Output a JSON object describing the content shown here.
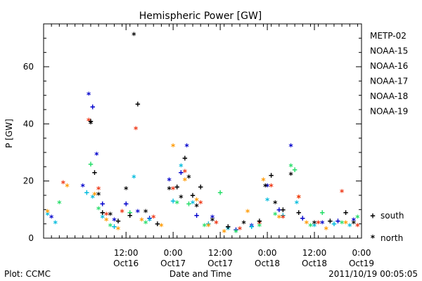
{
  "chart_data": {
    "type": "scatter",
    "title": "Hemispheric Power [GW]",
    "ylabel": "P [GW]",
    "xlabel": "Date and Time",
    "ylim": [
      0,
      75
    ],
    "xlim": [
      "2011-10-15T15:00",
      "2011-10-19T00:00"
    ],
    "yticks": [
      0,
      20,
      40,
      60
    ],
    "xticks": [
      {
        "time": "12:00",
        "date": "Oct16",
        "at": "2011-10-16T12:00"
      },
      {
        "time": "0:00",
        "date": "Oct17",
        "at": "2011-10-17T00:00"
      },
      {
        "time": "12:00",
        "date": "Oct17",
        "at": "2011-10-17T12:00"
      },
      {
        "time": "0:00",
        "date": "Oct18",
        "at": "2011-10-18T00:00"
      },
      {
        "time": "12:00",
        "date": "Oct18",
        "at": "2011-10-18T12:00"
      },
      {
        "time": "0:00",
        "date": "Oct19",
        "at": "2011-10-19T00:00"
      }
    ],
    "marker_legend": [
      {
        "symbol": "+",
        "label": "south"
      },
      {
        "symbol": "*",
        "label": "north"
      }
    ],
    "series": [
      {
        "name": "METP-02",
        "color": "#000000",
        "points": [
          [
            "2011-10-16T03:00",
            41,
            "+"
          ],
          [
            "2011-10-16T03:00",
            40,
            "*"
          ],
          [
            "2011-10-16T04:00",
            23,
            "+"
          ],
          [
            "2011-10-16T05:00",
            15,
            "*"
          ],
          [
            "2011-10-16T06:00",
            9,
            "+"
          ],
          [
            "2011-10-16T08:00",
            8,
            "*"
          ],
          [
            "2011-10-16T10:00",
            6,
            "+"
          ],
          [
            "2011-10-16T12:00",
            17,
            "*"
          ],
          [
            "2011-10-16T13:00",
            8,
            "+"
          ],
          [
            "2011-10-16T14:00",
            71,
            "*"
          ],
          [
            "2011-10-16T15:00",
            47,
            "+"
          ],
          [
            "2011-10-16T17:00",
            9,
            "*"
          ],
          [
            "2011-10-16T20:00",
            5,
            "+"
          ],
          [
            "2011-10-16T23:00",
            17,
            "*"
          ],
          [
            "2011-10-17T01:00",
            18,
            "+"
          ],
          [
            "2011-10-17T02:00",
            14,
            "*"
          ],
          [
            "2011-10-17T03:00",
            28,
            "+"
          ],
          [
            "2011-10-17T04:00",
            21,
            "*"
          ],
          [
            "2011-10-17T05:00",
            15,
            "+"
          ],
          [
            "2011-10-17T06:00",
            11,
            "*"
          ],
          [
            "2011-10-17T07:00",
            18,
            "+"
          ],
          [
            "2011-10-17T10:00",
            6,
            "*"
          ],
          [
            "2011-10-17T14:00",
            4,
            "+"
          ],
          [
            "2011-10-17T18:00",
            5,
            "*"
          ],
          [
            "2011-10-17T22:00",
            6,
            "+"
          ],
          [
            "2011-10-17T23:30",
            18,
            "*"
          ],
          [
            "2011-10-18T01:00",
            22,
            "+"
          ],
          [
            "2011-10-18T02:00",
            12,
            "*"
          ],
          [
            "2011-10-18T04:00",
            10,
            "+"
          ],
          [
            "2011-10-18T06:00",
            22,
            "*"
          ],
          [
            "2011-10-18T08:00",
            9,
            "+"
          ],
          [
            "2011-10-18T12:00",
            5,
            "*"
          ],
          [
            "2011-10-18T16:00",
            6,
            "+"
          ],
          [
            "2011-10-18T20:00",
            9,
            "+"
          ],
          [
            "2011-10-18T22:00",
            5,
            "*"
          ]
        ]
      },
      {
        "name": "NOAA-15",
        "color": "#0000cc",
        "points": [
          [
            "2011-10-15T17:00",
            7,
            "*"
          ],
          [
            "2011-10-16T01:00",
            18,
            "*"
          ],
          [
            "2011-10-16T02:30",
            50,
            "*"
          ],
          [
            "2011-10-16T03:30",
            46,
            "+"
          ],
          [
            "2011-10-16T04:30",
            29,
            "*"
          ],
          [
            "2011-10-16T06:00",
            12,
            "+"
          ],
          [
            "2011-10-16T09:00",
            6,
            "*"
          ],
          [
            "2011-10-16T12:00",
            12,
            "+"
          ],
          [
            "2011-10-16T15:00",
            9,
            "*"
          ],
          [
            "2011-10-16T18:00",
            7,
            "+"
          ],
          [
            "2011-10-16T23:00",
            20,
            "*"
          ],
          [
            "2011-10-17T02:00",
            23,
            "+"
          ],
          [
            "2011-10-17T03:30",
            32,
            "*"
          ],
          [
            "2011-10-17T06:00",
            8,
            "+"
          ],
          [
            "2011-10-17T10:00",
            7,
            "*"
          ],
          [
            "2011-10-17T16:00",
            3,
            "+"
          ],
          [
            "2011-10-17T20:00",
            4,
            "*"
          ],
          [
            "2011-10-18T00:00",
            18,
            "*"
          ],
          [
            "2011-10-18T03:00",
            10,
            "+"
          ],
          [
            "2011-10-18T06:00",
            32,
            "*"
          ],
          [
            "2011-10-18T09:00",
            7,
            "+"
          ],
          [
            "2011-10-18T14:00",
            5,
            "*"
          ],
          [
            "2011-10-18T18:00",
            6,
            "+"
          ],
          [
            "2011-10-18T22:00",
            6,
            "*"
          ]
        ]
      },
      {
        "name": "NOAA-16",
        "color": "#00bbdd",
        "points": [
          [
            "2011-10-15T16:00",
            8,
            "*"
          ],
          [
            "2011-10-15T18:00",
            5,
            "*"
          ],
          [
            "2011-10-16T02:00",
            16,
            "+"
          ],
          [
            "2011-10-16T03:30",
            14,
            "*"
          ],
          [
            "2011-10-16T06:00",
            7,
            "*"
          ],
          [
            "2011-10-16T09:00",
            4,
            "+"
          ],
          [
            "2011-10-16T14:00",
            21,
            "*"
          ],
          [
            "2011-10-16T18:00",
            6,
            "*"
          ],
          [
            "2011-10-17T00:00",
            13,
            "+"
          ],
          [
            "2011-10-17T02:00",
            25,
            "*"
          ],
          [
            "2011-10-17T05:00",
            12,
            "*"
          ],
          [
            "2011-10-17T09:00",
            5,
            "+"
          ],
          [
            "2011-10-17T14:00",
            3,
            "*"
          ],
          [
            "2011-10-17T20:00",
            4,
            "+"
          ],
          [
            "2011-10-18T00:00",
            13,
            "*"
          ],
          [
            "2011-10-18T04:00",
            8,
            "+"
          ],
          [
            "2011-10-18T07:30",
            12,
            "*"
          ],
          [
            "2011-10-18T12:00",
            4,
            "*"
          ],
          [
            "2011-10-18T17:00",
            5,
            "+"
          ],
          [
            "2011-10-18T21:00",
            4,
            "*"
          ]
        ]
      },
      {
        "name": "NOAA-17",
        "color": "#22dd66",
        "points": [
          [
            "2011-10-15T19:00",
            12,
            "*"
          ],
          [
            "2011-10-16T03:00",
            26,
            "+"
          ],
          [
            "2011-10-16T05:00",
            10,
            "*"
          ],
          [
            "2011-10-16T08:00",
            4,
            "*"
          ],
          [
            "2011-10-16T13:00",
            9,
            "+"
          ],
          [
            "2011-10-16T17:00",
            5,
            "*"
          ],
          [
            "2011-10-17T01:00",
            12,
            "*"
          ],
          [
            "2011-10-17T04:00",
            12,
            "+"
          ],
          [
            "2011-10-17T08:00",
            4,
            "*"
          ],
          [
            "2011-10-17T12:00",
            16,
            "+"
          ],
          [
            "2011-10-17T16:00",
            2,
            "*"
          ],
          [
            "2011-10-17T22:00",
            4,
            "*"
          ],
          [
            "2011-10-18T02:00",
            8,
            "*"
          ],
          [
            "2011-10-18T06:00",
            25,
            "*"
          ],
          [
            "2011-10-18T07:00",
            24,
            "+"
          ],
          [
            "2011-10-18T11:00",
            4,
            "*"
          ],
          [
            "2011-10-18T14:00",
            9,
            "+"
          ],
          [
            "2011-10-18T19:00",
            5,
            "*"
          ],
          [
            "2011-10-18T23:00",
            7,
            "*"
          ]
        ]
      },
      {
        "name": "NOAA-18",
        "color": "#ff9900",
        "points": [
          [
            "2011-10-15T16:00",
            9,
            "*"
          ],
          [
            "2011-10-15T21:00",
            18,
            "*"
          ],
          [
            "2011-10-16T04:00",
            15,
            "*"
          ],
          [
            "2011-10-16T07:00",
            6,
            "*"
          ],
          [
            "2011-10-16T10:00",
            3,
            "*"
          ],
          [
            "2011-10-16T16:00",
            6,
            "*"
          ],
          [
            "2011-10-16T21:00",
            4,
            "*"
          ],
          [
            "2011-10-17T00:00",
            32,
            "*"
          ],
          [
            "2011-10-17T03:00",
            20,
            "*"
          ],
          [
            "2011-10-17T06:00",
            13,
            "*"
          ],
          [
            "2011-10-17T09:00",
            4,
            "*"
          ],
          [
            "2011-10-17T13:00",
            2,
            "*"
          ],
          [
            "2011-10-17T19:00",
            9,
            "*"
          ],
          [
            "2011-10-17T23:00",
            20,
            "*"
          ],
          [
            "2011-10-18T03:00",
            7,
            "*"
          ],
          [
            "2011-10-18T08:00",
            14,
            "*"
          ],
          [
            "2011-10-18T10:00",
            5,
            "*"
          ],
          [
            "2011-10-18T15:00",
            3,
            "*"
          ],
          [
            "2011-10-18T20:00",
            5,
            "*"
          ]
        ]
      },
      {
        "name": "NOAA-19",
        "color": "#ee3311",
        "points": [
          [
            "2011-10-15T20:00",
            19,
            "*"
          ],
          [
            "2011-10-16T02:30",
            41,
            "*"
          ],
          [
            "2011-10-16T05:00",
            17,
            "*"
          ],
          [
            "2011-10-16T07:00",
            8,
            "*"
          ],
          [
            "2011-10-16T11:00",
            9,
            "*"
          ],
          [
            "2011-10-16T14:30",
            38,
            "*"
          ],
          [
            "2011-10-16T19:00",
            7,
            "*"
          ],
          [
            "2011-10-17T00:00",
            17,
            "*"
          ],
          [
            "2011-10-17T03:00",
            23,
            "*"
          ],
          [
            "2011-10-17T07:00",
            12,
            "*"
          ],
          [
            "2011-10-17T11:00",
            5,
            "*"
          ],
          [
            "2011-10-17T17:00",
            3,
            "*"
          ],
          [
            "2011-10-17T22:00",
            5,
            "*"
          ],
          [
            "2011-10-18T01:00",
            18,
            "*"
          ],
          [
            "2011-10-18T04:00",
            7,
            "*"
          ],
          [
            "2011-10-18T08:00",
            14,
            "*"
          ],
          [
            "2011-10-18T13:00",
            5,
            "*"
          ],
          [
            "2011-10-18T19:00",
            16,
            "*"
          ],
          [
            "2011-10-18T23:00",
            4,
            "*"
          ]
        ]
      }
    ]
  },
  "footer": {
    "plot_label": "Plot: CCMC",
    "timestamp": "2011/10/19 00:05:05"
  }
}
